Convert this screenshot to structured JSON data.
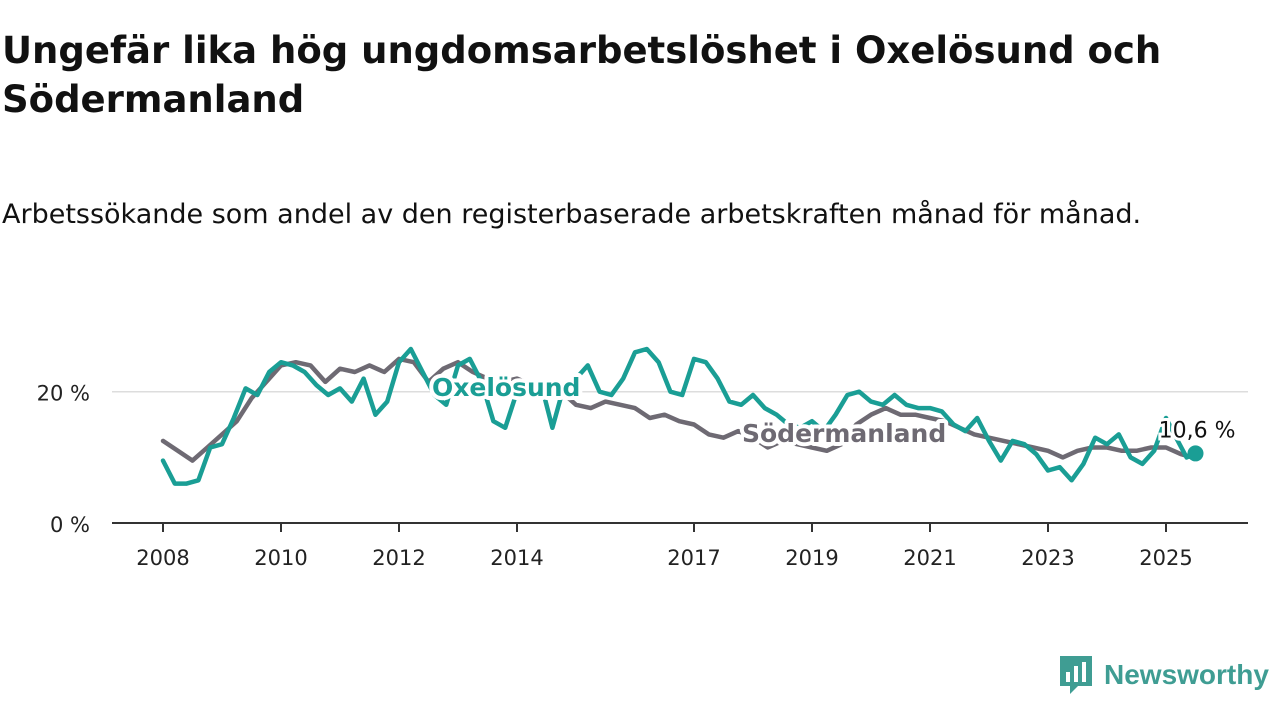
{
  "title": "Ungefär lika hög ungdomsarbetslöshet i Oxelösund och Södermanland",
  "subtitle": "Arbetssökande som andel av den registerbaserade arbetskraften månad för månad.",
  "brand": {
    "name": "Newsworthy",
    "icon": "newsworthy-logo-icon"
  },
  "colors": {
    "oxelosund": "#1a9e95",
    "sodermanland": "#6e6a73",
    "grid": "#dddddd",
    "axis": "#333333"
  },
  "chart_data": {
    "type": "line",
    "title": "Ungefär lika hög ungdomsarbetslöshet i Oxelösund och Södermanland",
    "ylim": [
      0,
      30
    ],
    "xlim": [
      2008,
      2026.4
    ],
    "y_ticks": [
      {
        "value": 0,
        "label": "0 %"
      },
      {
        "value": 20,
        "label": "20 %"
      }
    ],
    "x_ticks": [
      {
        "value": 2008,
        "label": "2008"
      },
      {
        "value": 2010,
        "label": "2010"
      },
      {
        "value": 2012,
        "label": "2012"
      },
      {
        "value": 2014,
        "label": "2014"
      },
      {
        "value": 2017,
        "label": "2017"
      },
      {
        "value": 2019,
        "label": "2019"
      },
      {
        "value": 2021,
        "label": "2021"
      },
      {
        "value": 2023,
        "label": "2023"
      },
      {
        "value": 2025,
        "label": "2025"
      }
    ],
    "grid": true,
    "end_label": "10,6 %",
    "series": [
      {
        "name": "Södermanland",
        "label_at": [
          2013.9,
          2.5
        ],
        "points": [
          [
            2008.0,
            12.5
          ],
          [
            2008.25,
            11.0
          ],
          [
            2008.5,
            9.5
          ],
          [
            2008.75,
            11.5
          ],
          [
            2009.0,
            13.5
          ],
          [
            2009.25,
            15.5
          ],
          [
            2009.5,
            19.0
          ],
          [
            2009.75,
            21.5
          ],
          [
            2010.0,
            24.0
          ],
          [
            2010.25,
            24.5
          ],
          [
            2010.5,
            24.0
          ],
          [
            2010.75,
            21.5
          ],
          [
            2011.0,
            23.5
          ],
          [
            2011.25,
            23.0
          ],
          [
            2011.5,
            24.0
          ],
          [
            2011.75,
            23.0
          ],
          [
            2012.0,
            25.0
          ],
          [
            2012.25,
            24.5
          ],
          [
            2012.5,
            21.5
          ],
          [
            2012.75,
            23.5
          ],
          [
            2013.0,
            24.5
          ],
          [
            2013.25,
            23.0
          ],
          [
            2013.5,
            22.0
          ],
          [
            2013.75,
            21.5
          ],
          [
            2014.0,
            22.0
          ],
          [
            2014.25,
            21.0
          ],
          [
            2014.5,
            20.5
          ],
          [
            2014.75,
            20.0
          ],
          [
            2015.0,
            18.0
          ],
          [
            2015.25,
            17.5
          ],
          [
            2015.5,
            18.5
          ],
          [
            2015.75,
            18.0
          ],
          [
            2016.0,
            17.5
          ],
          [
            2016.25,
            16.0
          ],
          [
            2016.5,
            16.5
          ],
          [
            2016.75,
            15.5
          ],
          [
            2017.0,
            15.0
          ],
          [
            2017.25,
            13.5
          ],
          [
            2017.5,
            13.0
          ],
          [
            2017.75,
            14.0
          ],
          [
            2018.0,
            13.0
          ],
          [
            2018.25,
            11.5
          ],
          [
            2018.5,
            12.5
          ],
          [
            2018.75,
            12.0
          ],
          [
            2019.0,
            11.5
          ],
          [
            2019.25,
            11.0
          ],
          [
            2019.5,
            12.0
          ],
          [
            2019.75,
            15.0
          ],
          [
            2020.0,
            16.5
          ],
          [
            2020.25,
            17.5
          ],
          [
            2020.5,
            16.5
          ],
          [
            2020.75,
            16.5
          ],
          [
            2021.0,
            16.0
          ],
          [
            2021.25,
            15.5
          ],
          [
            2021.5,
            14.5
          ],
          [
            2021.75,
            13.5
          ],
          [
            2022.0,
            13.0
          ],
          [
            2022.25,
            12.5
          ],
          [
            2022.5,
            12.0
          ],
          [
            2022.75,
            11.5
          ],
          [
            2023.0,
            11.0
          ],
          [
            2023.25,
            10.0
          ],
          [
            2023.5,
            11.0
          ],
          [
            2023.75,
            11.5
          ],
          [
            2024.0,
            11.5
          ],
          [
            2024.25,
            11.0
          ],
          [
            2024.5,
            11.0
          ],
          [
            2024.75,
            11.5
          ],
          [
            2025.0,
            11.5
          ],
          [
            2025.25,
            10.5
          ],
          [
            2025.45,
            10.0
          ]
        ]
      },
      {
        "name": "Oxelösund",
        "label_at": [
          2012.5,
          20.0
        ],
        "points": [
          [
            2008.0,
            9.5
          ],
          [
            2008.2,
            6.0
          ],
          [
            2008.4,
            6.0
          ],
          [
            2008.6,
            6.5
          ],
          [
            2008.8,
            11.5
          ],
          [
            2009.0,
            12.0
          ],
          [
            2009.2,
            16.0
          ],
          [
            2009.4,
            20.5
          ],
          [
            2009.6,
            19.5
          ],
          [
            2009.8,
            23.0
          ],
          [
            2010.0,
            24.5
          ],
          [
            2010.2,
            24.0
          ],
          [
            2010.4,
            23.0
          ],
          [
            2010.6,
            21.0
          ],
          [
            2010.8,
            19.5
          ],
          [
            2011.0,
            20.5
          ],
          [
            2011.2,
            18.5
          ],
          [
            2011.4,
            22.0
          ],
          [
            2011.6,
            16.5
          ],
          [
            2011.8,
            18.5
          ],
          [
            2012.0,
            24.5
          ],
          [
            2012.2,
            26.5
          ],
          [
            2012.4,
            23.0
          ],
          [
            2012.6,
            19.5
          ],
          [
            2012.8,
            18.0
          ],
          [
            2013.0,
            24.0
          ],
          [
            2013.2,
            25.0
          ],
          [
            2013.4,
            21.5
          ],
          [
            2013.6,
            15.5
          ],
          [
            2013.8,
            14.5
          ],
          [
            2014.0,
            20.0
          ],
          [
            2014.2,
            19.5
          ],
          [
            2014.4,
            21.5
          ],
          [
            2014.6,
            14.5
          ],
          [
            2014.8,
            21.0
          ],
          [
            2015.0,
            22.0
          ],
          [
            2015.2,
            24.0
          ],
          [
            2015.4,
            20.0
          ],
          [
            2015.6,
            19.5
          ],
          [
            2015.8,
            22.0
          ],
          [
            2016.0,
            26.0
          ],
          [
            2016.2,
            26.5
          ],
          [
            2016.4,
            24.5
          ],
          [
            2016.6,
            20.0
          ],
          [
            2016.8,
            19.5
          ],
          [
            2017.0,
            25.0
          ],
          [
            2017.2,
            24.5
          ],
          [
            2017.4,
            22.0
          ],
          [
            2017.6,
            18.5
          ],
          [
            2017.8,
            18.0
          ],
          [
            2018.0,
            19.5
          ],
          [
            2018.2,
            17.5
          ],
          [
            2018.4,
            16.5
          ],
          [
            2018.6,
            15.0
          ],
          [
            2018.8,
            14.5
          ],
          [
            2019.0,
            15.5
          ],
          [
            2019.2,
            14.0
          ],
          [
            2019.4,
            16.5
          ],
          [
            2019.6,
            19.5
          ],
          [
            2019.8,
            20.0
          ],
          [
            2020.0,
            18.5
          ],
          [
            2020.2,
            18.0
          ],
          [
            2020.4,
            19.5
          ],
          [
            2020.6,
            18.0
          ],
          [
            2020.8,
            17.5
          ],
          [
            2021.0,
            17.5
          ],
          [
            2021.2,
            17.0
          ],
          [
            2021.4,
            15.0
          ],
          [
            2021.6,
            14.0
          ],
          [
            2021.8,
            16.0
          ],
          [
            2022.0,
            12.5
          ],
          [
            2022.2,
            9.5
          ],
          [
            2022.4,
            12.5
          ],
          [
            2022.6,
            12.0
          ],
          [
            2022.8,
            10.5
          ],
          [
            2023.0,
            8.0
          ],
          [
            2023.2,
            8.5
          ],
          [
            2023.4,
            6.5
          ],
          [
            2023.6,
            9.0
          ],
          [
            2023.8,
            13.0
          ],
          [
            2024.0,
            12.0
          ],
          [
            2024.2,
            13.5
          ],
          [
            2024.4,
            10.0
          ],
          [
            2024.6,
            9.0
          ],
          [
            2024.8,
            11.0
          ],
          [
            2025.0,
            16.0
          ],
          [
            2025.2,
            12.5
          ],
          [
            2025.35,
            10.0
          ],
          [
            2025.5,
            10.6
          ]
        ]
      }
    ]
  }
}
